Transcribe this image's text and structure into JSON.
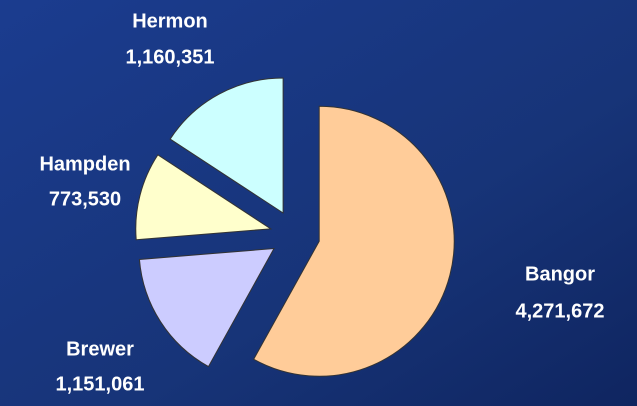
{
  "chart_data": {
    "type": "pie",
    "categories": [
      "Bangor",
      "Brewer",
      "Hampden",
      "Hermon"
    ],
    "values": [
      4271672,
      1151061,
      773530,
      1160351
    ],
    "value_labels": [
      "4,271,672",
      "1,151,061",
      "773,530",
      "1,160,351"
    ],
    "colors": [
      "#ffcc99",
      "#ccccff",
      "#ffffcc",
      "#ccffff"
    ],
    "start_angle": 0,
    "direction": "clockwise",
    "exploded": true
  }
}
